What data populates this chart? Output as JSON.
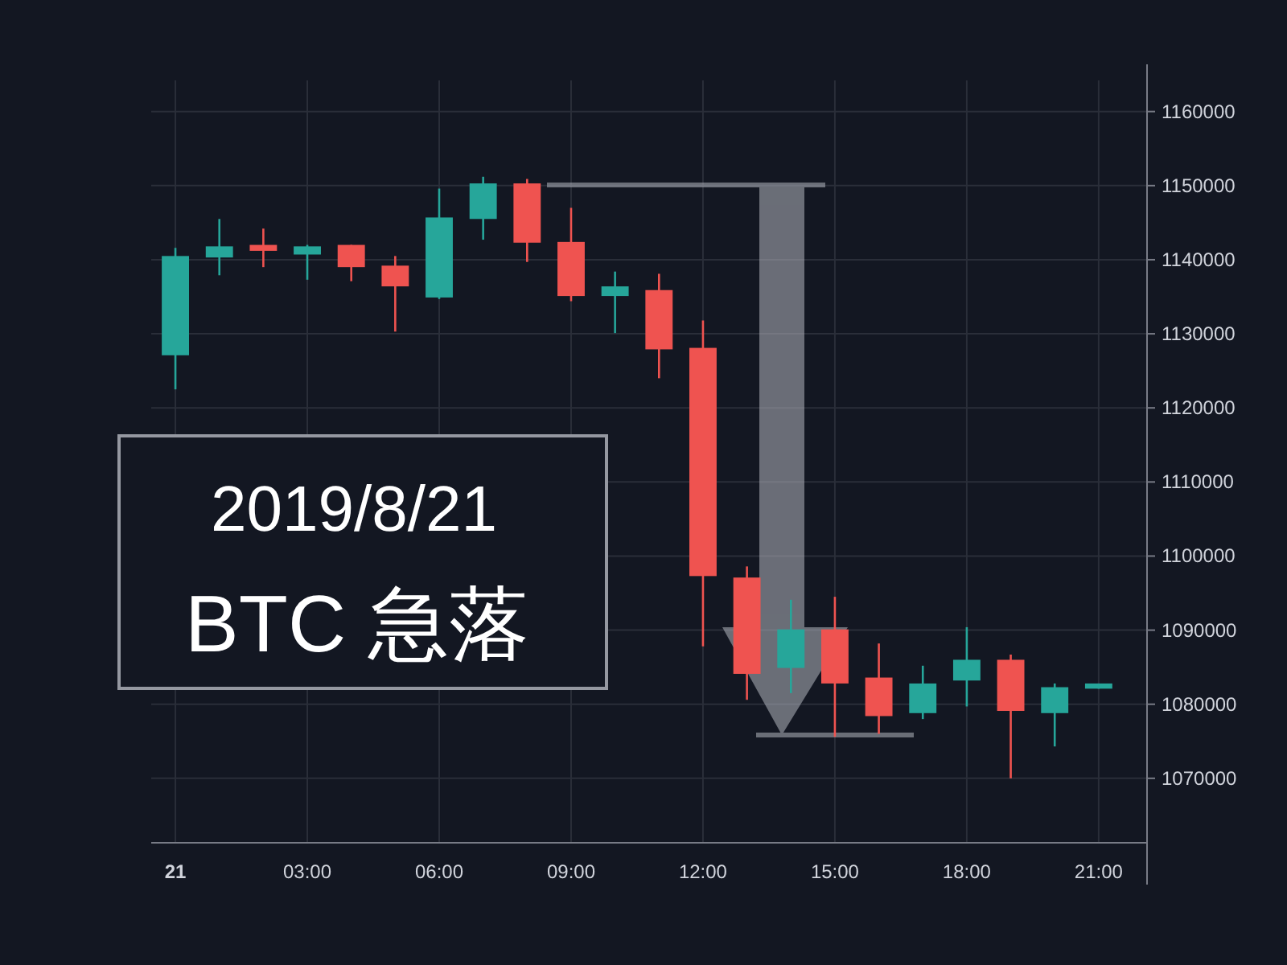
{
  "chart_data": {
    "type": "candlestick",
    "annotations": [
      "2019/8/21",
      "BTC 急落"
    ],
    "x": [
      "2019-08-21T00:00",
      "2019-08-21T01:00",
      "2019-08-21T02:00",
      "2019-08-21T03:00",
      "2019-08-21T04:00",
      "2019-08-21T05:00",
      "2019-08-21T06:00",
      "2019-08-21T07:00",
      "2019-08-21T08:00",
      "2019-08-21T09:00",
      "2019-08-21T10:00",
      "2019-08-21T11:00",
      "2019-08-21T12:00",
      "2019-08-21T13:00",
      "2019-08-21T14:00",
      "2019-08-21T15:00",
      "2019-08-21T16:00",
      "2019-08-21T17:00",
      "2019-08-21T18:00",
      "2019-08-21T19:00",
      "2019-08-21T20:00",
      "2019-08-21T21:00"
    ],
    "ohlc": [
      [
        1127100,
        1141600,
        1122500,
        1140500
      ],
      [
        1140300,
        1145500,
        1137900,
        1141800
      ],
      [
        1142000,
        1144200,
        1139000,
        1141200
      ],
      [
        1140700,
        1142000,
        1137300,
        1141800
      ],
      [
        1142000,
        1142000,
        1137100,
        1139000
      ],
      [
        1139200,
        1140500,
        1130300,
        1136400
      ],
      [
        1134900,
        1149600,
        1134700,
        1145700
      ],
      [
        1145500,
        1151200,
        1142700,
        1150300
      ],
      [
        1150300,
        1150900,
        1139700,
        1142300
      ],
      [
        1142400,
        1147000,
        1134400,
        1135100
      ],
      [
        1135100,
        1138400,
        1130100,
        1136400
      ],
      [
        1135900,
        1138100,
        1124000,
        1127900
      ],
      [
        1128100,
        1131800,
        1087800,
        1097300
      ],
      [
        1097100,
        1098600,
        1080600,
        1084100
      ],
      [
        1084900,
        1094100,
        1081500,
        1090100
      ],
      [
        1090100,
        1094500,
        1075600,
        1082800
      ],
      [
        1083600,
        1088200,
        1076000,
        1078400
      ],
      [
        1078800,
        1085200,
        1078000,
        1082800
      ],
      [
        1083200,
        1090400,
        1079700,
        1086000
      ],
      [
        1086000,
        1086700,
        1070000,
        1079100
      ],
      [
        1078800,
        1082800,
        1074300,
        1082300
      ],
      [
        1082100,
        1082800,
        1082100,
        1082800
      ]
    ],
    "xlim": [
      "2019-08-20T23:27",
      "2019-08-21T22:06"
    ],
    "ylim": [
      1061300,
      1164200
    ],
    "xticks": [
      {
        "value": "2019-08-21T00:00",
        "label": "21"
      },
      {
        "value": "2019-08-21T03:00",
        "label": "03:00"
      },
      {
        "value": "2019-08-21T06:00",
        "label": "06:00"
      },
      {
        "value": "2019-08-21T09:00",
        "label": "09:00"
      },
      {
        "value": "2019-08-21T12:00",
        "label": "12:00"
      },
      {
        "value": "2019-08-21T15:00",
        "label": "15:00"
      },
      {
        "value": "2019-08-21T18:00",
        "label": "18:00"
      },
      {
        "value": "2019-08-21T21:00",
        "label": "21:00"
      }
    ],
    "yticks": [
      1070000,
      1080000,
      1090000,
      1100000,
      1110000,
      1120000,
      1130000,
      1140000,
      1150000,
      1160000
    ],
    "grid": true
  }
}
